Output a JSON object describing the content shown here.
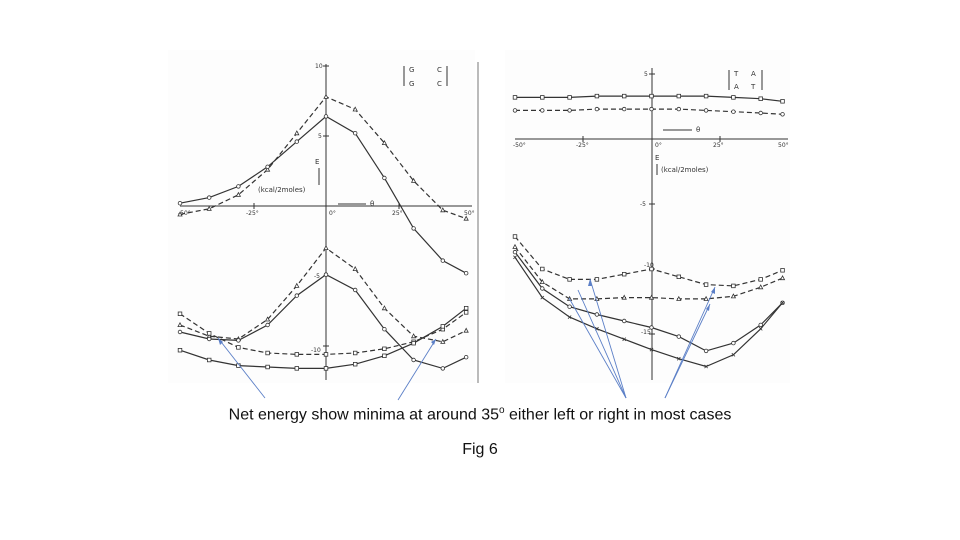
{
  "caption": {
    "main_prefix": "Net energy show minima at around 35",
    "main_sup": "o",
    "main_suffix": " either left or right in most cases",
    "figure_label": "Fig 6"
  },
  "colors": {
    "ink": "#333333",
    "arrow": "#5b7fc7",
    "background": "#ffffff"
  },
  "chart_data": [
    {
      "type": "line",
      "panel": "left",
      "legend_text": [
        "G",
        "C",
        "G",
        "C"
      ],
      "ylabel": "E",
      "yunit": "(kcal/2moles)",
      "xlabel": "θ",
      "x_ticks": [
        "-50°",
        "-25°",
        "0°",
        "25°",
        "50°"
      ],
      "y_ticks": [
        "10",
        "5",
        "-5",
        "-10"
      ],
      "xlim": [
        -50,
        50
      ],
      "ylim": [
        -13,
        10
      ],
      "x": [
        -50,
        -40,
        -30,
        -20,
        -10,
        0,
        10,
        20,
        30,
        40,
        48
      ],
      "series": [
        {
          "marker": "triangle",
          "style": "dashed",
          "values": [
            -0.6,
            -0.2,
            0.8,
            2.6,
            5.2,
            7.8,
            6.9,
            4.5,
            1.8,
            -0.3,
            -0.9
          ]
        },
        {
          "marker": "circle",
          "style": "solid",
          "values": [
            0.2,
            0.6,
            1.4,
            2.8,
            4.6,
            6.4,
            5.2,
            2.0,
            -1.6,
            -3.9,
            -4.8
          ]
        },
        {
          "marker": "triangle",
          "style": "dashed",
          "values": [
            -8.5,
            -9.3,
            -9.5,
            -8.1,
            -5.7,
            -3.0,
            -4.5,
            -7.3,
            -9.3,
            -9.7,
            -8.9
          ]
        },
        {
          "marker": "circle",
          "style": "solid",
          "values": [
            -9.0,
            -9.5,
            -9.6,
            -8.5,
            -6.4,
            -4.9,
            -6.0,
            -8.8,
            -11.0,
            -11.6,
            -10.8
          ]
        },
        {
          "marker": "square",
          "style": "dashed",
          "values": [
            -7.7,
            -9.1,
            -10.1,
            -10.5,
            -10.6,
            -10.6,
            -10.5,
            -10.2,
            -9.7,
            -8.8,
            -7.6
          ]
        },
        {
          "marker": "square",
          "style": "solid",
          "values": [
            -10.3,
            -11.0,
            -11.4,
            -11.5,
            -11.6,
            -11.6,
            -11.3,
            -10.7,
            -9.8,
            -8.6,
            -7.3
          ]
        }
      ]
    },
    {
      "type": "line",
      "panel": "right",
      "legend_text": [
        "T",
        "A",
        "A",
        "T"
      ],
      "ylabel": "E",
      "yunit": "(kcal/2moles)",
      "xlabel": "θ",
      "x_ticks": [
        "-50°",
        "-25°",
        "0°",
        "25°",
        "50°"
      ],
      "y_ticks": [
        "5",
        "-5",
        "-10",
        "-15"
      ],
      "xlim": [
        -50,
        50
      ],
      "ylim": [
        -18,
        6
      ],
      "x": [
        -50,
        -40,
        -30,
        -20,
        -10,
        0,
        10,
        20,
        30,
        40,
        48
      ],
      "series": [
        {
          "marker": "square",
          "style": "solid",
          "values": [
            3.2,
            3.2,
            3.2,
            3.3,
            3.3,
            3.3,
            3.3,
            3.3,
            3.2,
            3.1,
            2.9
          ]
        },
        {
          "marker": "circle",
          "style": "dashed",
          "values": [
            2.2,
            2.2,
            2.2,
            2.3,
            2.3,
            2.3,
            2.3,
            2.2,
            2.1,
            2.0,
            1.9
          ]
        },
        {
          "marker": "square",
          "style": "dashed",
          "values": [
            -7.5,
            -10.0,
            -10.8,
            -10.8,
            -10.4,
            -10.0,
            -10.6,
            -11.2,
            -11.3,
            -10.8,
            -10.1
          ]
        },
        {
          "marker": "triangle",
          "style": "dashed",
          "values": [
            -8.3,
            -11.0,
            -12.3,
            -12.3,
            -12.2,
            -12.2,
            -12.3,
            -12.3,
            -12.1,
            -11.4,
            -10.7
          ]
        },
        {
          "marker": "circle",
          "style": "solid",
          "values": [
            -8.7,
            -11.5,
            -12.9,
            -13.5,
            -14.0,
            -14.5,
            -15.2,
            -16.3,
            -15.7,
            -14.3,
            -12.6
          ]
        },
        {
          "marker": "cross",
          "style": "solid",
          "values": [
            -9.1,
            -12.2,
            -13.7,
            -14.6,
            -15.4,
            -16.2,
            -16.9,
            -17.5,
            -16.6,
            -14.6,
            -12.6
          ]
        }
      ]
    }
  ]
}
